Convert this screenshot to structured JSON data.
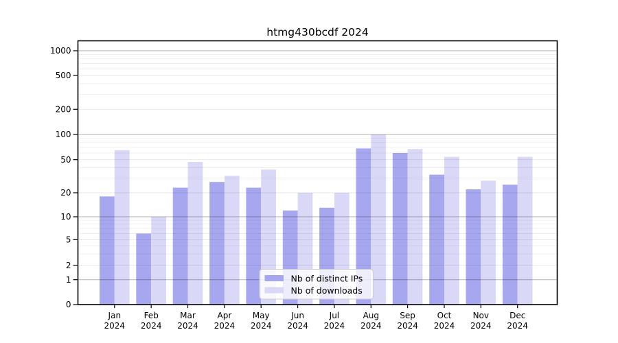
{
  "figure": {
    "title": "htmg430bcdf 2024"
  },
  "chart_data": {
    "type": "bar",
    "title": "htmg430bcdf 2024",
    "categories": [
      "Jan",
      "Feb",
      "Mar",
      "Apr",
      "May",
      "Jun",
      "Jul",
      "Aug",
      "Sep",
      "Oct",
      "Nov",
      "Dec"
    ],
    "category_sublabel": "2024",
    "series": [
      {
        "name": "Nb of distinct IPs",
        "values": [
          18,
          6,
          23,
          27,
          23,
          12,
          13,
          68,
          60,
          33,
          22,
          25
        ]
      },
      {
        "name": "Nb of downloads",
        "values": [
          65,
          10,
          47,
          32,
          38,
          20,
          20,
          100,
          67,
          54,
          28,
          54
        ]
      }
    ],
    "y_axis": {
      "scale": "log-like (linear 0-1, log above)",
      "ticks": [
        0,
        1,
        2,
        5,
        10,
        20,
        50,
        100,
        200,
        500,
        1000
      ],
      "ylim": [
        0,
        1300
      ],
      "grid": true
    },
    "x_axis": {
      "tick_label_line1": [
        "Jan",
        "Feb",
        "Mar",
        "Apr",
        "May",
        "Jun",
        "Jul",
        "Aug",
        "Sep",
        "Oct",
        "Nov",
        "Dec"
      ],
      "tick_label_line2": "2024"
    },
    "legend": {
      "position": "lower-center",
      "entries": [
        "Nb of distinct IPs",
        "Nb of downloads"
      ]
    }
  },
  "colors": {
    "bar_distinct_ips": "#a7a7ef",
    "bar_downloads": "#d9d9f7",
    "grid_major": "rgba(0,0,0,0.30)",
    "grid_named": "rgba(0,0,0,0.10)",
    "grid_minor": "rgba(0,0,0,0.065)",
    "axis_frame": "#000000",
    "legend_border": "#cccccc",
    "legend_background": "rgba(255,255,255,0.8)"
  }
}
